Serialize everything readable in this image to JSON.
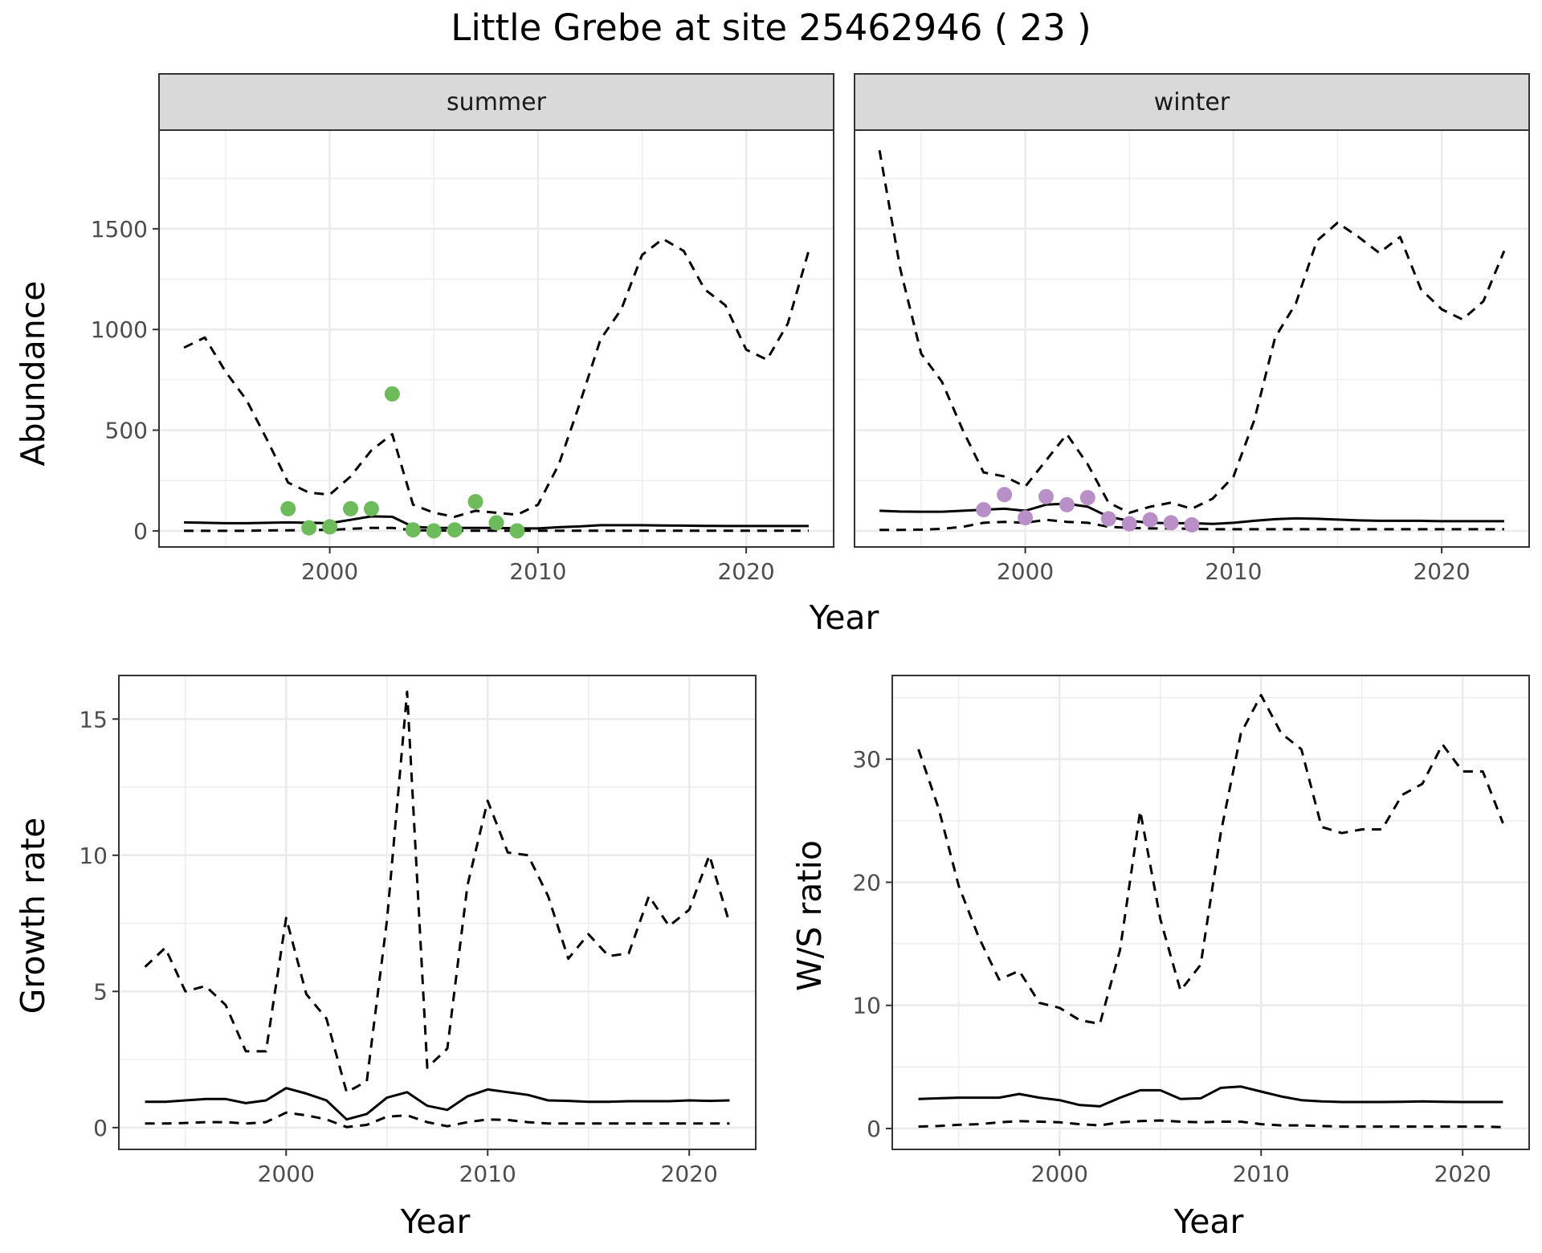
{
  "title": "Little Grebe at site 25462946 ( 23 )",
  "colors": {
    "summer": "#6dbb5a",
    "winter": "#b98fc8",
    "line": "#000000",
    "grid": "#ebebeb",
    "strip": "#d9d9d9"
  },
  "chart_data": [
    {
      "type": "line",
      "facet": "summer",
      "ylabel": "Abundance",
      "xlabel": "Year",
      "xlim": [
        1991.8,
        2024.2
      ],
      "ylim": [
        -80,
        1990
      ],
      "yticks": [
        0,
        500,
        1000,
        1500
      ],
      "xticks": [
        2000,
        2010,
        2020
      ],
      "grid": true,
      "series": [
        {
          "style": "solid",
          "x": [
            1993,
            1994,
            1995,
            1996,
            1997,
            1998,
            1999,
            2000,
            2001,
            2002,
            2003,
            2004,
            2005,
            2006,
            2007,
            2008,
            2009,
            2010,
            2011,
            2012,
            2013,
            2014,
            2015,
            2016,
            2017,
            2018,
            2019,
            2020,
            2021,
            2022,
            2023
          ],
          "y": [
            42,
            40,
            38,
            38,
            40,
            42,
            40,
            38,
            55,
            72,
            70,
            20,
            15,
            15,
            15,
            15,
            12,
            12,
            18,
            22,
            28,
            28,
            28,
            27,
            26,
            25,
            24,
            24,
            24,
            24,
            24
          ]
        },
        {
          "style": "dashed",
          "x": [
            1993,
            1994,
            1995,
            1996,
            1997,
            1998,
            1999,
            2000,
            2001,
            2002,
            2003,
            2004,
            2005,
            2006,
            2007,
            2008,
            2009,
            2010,
            2011,
            2012,
            2013,
            2014,
            2015,
            2016,
            2017,
            2018,
            2019,
            2020,
            2021,
            2022,
            2023
          ],
          "y": [
            910,
            960,
            790,
            650,
            450,
            240,
            190,
            180,
            270,
            400,
            480,
            130,
            90,
            70,
            100,
            90,
            80,
            130,
            330,
            630,
            950,
            1100,
            1370,
            1450,
            1390,
            1200,
            1120,
            900,
            850,
            1030,
            1390
          ]
        },
        {
          "style": "dashed",
          "x": [
            1993,
            1994,
            1995,
            1996,
            1997,
            1998,
            1999,
            2000,
            2001,
            2002,
            2003,
            2004,
            2005,
            2006,
            2007,
            2008,
            2009,
            2010,
            2011,
            2012,
            2013,
            2014,
            2015,
            2016,
            2017,
            2018,
            2019,
            2020,
            2021,
            2022,
            2023
          ],
          "y": [
            0,
            0,
            0,
            0,
            2,
            3,
            4,
            5,
            10,
            15,
            15,
            3,
            2,
            1,
            1,
            1,
            1,
            1,
            1,
            1,
            1,
            1,
            1,
            1,
            1,
            1,
            1,
            1,
            1,
            1,
            1
          ]
        }
      ],
      "points": {
        "x": [
          1998,
          1999,
          2000,
          2001,
          2002,
          2003,
          2004,
          2005,
          2006,
          2007,
          2008,
          2009
        ],
        "y": [
          110,
          15,
          20,
          110,
          110,
          680,
          5,
          0,
          5,
          145,
          40,
          0
        ]
      }
    },
    {
      "type": "line",
      "facet": "winter",
      "xlabel": "Year",
      "xlim": [
        1991.8,
        2024.2
      ],
      "ylim": [
        -80,
        1990
      ],
      "xticks": [
        2000,
        2010,
        2020
      ],
      "grid": true,
      "series": [
        {
          "style": "solid",
          "x": [
            1993,
            1994,
            1995,
            1996,
            1997,
            1998,
            1999,
            2000,
            2001,
            2002,
            2003,
            2004,
            2005,
            2006,
            2007,
            2008,
            2009,
            2010,
            2011,
            2012,
            2013,
            2014,
            2015,
            2016,
            2017,
            2018,
            2019,
            2020,
            2021,
            2022,
            2023
          ],
          "y": [
            100,
            96,
            95,
            95,
            100,
            105,
            110,
            100,
            130,
            135,
            120,
            70,
            50,
            40,
            38,
            38,
            35,
            40,
            50,
            58,
            62,
            60,
            56,
            52,
            50,
            50,
            50,
            48,
            48,
            48,
            48
          ]
        },
        {
          "style": "dashed",
          "x": [
            1993,
            1994,
            1995,
            1996,
            1997,
            1998,
            1999,
            2000,
            2001,
            2002,
            2003,
            2004,
            2005,
            2006,
            2007,
            2008,
            2009,
            2010,
            2011,
            2012,
            2013,
            2014,
            2015,
            2016,
            2017,
            2018,
            2019,
            2020,
            2021,
            2022,
            2023
          ],
          "y": [
            1890,
            1300,
            880,
            740,
            500,
            290,
            270,
            220,
            350,
            480,
            330,
            140,
            90,
            120,
            140,
            110,
            160,
            270,
            550,
            960,
            1130,
            1440,
            1530,
            1460,
            1380,
            1460,
            1200,
            1100,
            1050,
            1140,
            1390
          ]
        },
        {
          "style": "dashed",
          "x": [
            1993,
            1994,
            1995,
            1996,
            1997,
            1998,
            1999,
            2000,
            2001,
            2002,
            2003,
            2004,
            2005,
            2006,
            2007,
            2008,
            2009,
            2010,
            2011,
            2012,
            2013,
            2014,
            2015,
            2016,
            2017,
            2018,
            2019,
            2020,
            2021,
            2022,
            2023
          ],
          "y": [
            5,
            5,
            6,
            10,
            20,
            40,
            45,
            40,
            55,
            45,
            40,
            20,
            15,
            12,
            12,
            10,
            8,
            8,
            8,
            8,
            8,
            8,
            8,
            8,
            8,
            8,
            8,
            8,
            8,
            8,
            8
          ]
        }
      ],
      "points": {
        "x": [
          1998,
          1999,
          2000,
          2001,
          2002,
          2003,
          2004,
          2005,
          2006,
          2007,
          2008
        ],
        "y": [
          105,
          180,
          65,
          170,
          130,
          165,
          60,
          35,
          55,
          40,
          30
        ]
      }
    },
    {
      "type": "line",
      "ylabel": "Growth rate",
      "xlabel": "Year",
      "xlim": [
        1991.7,
        2023.3
      ],
      "ylim": [
        -0.8,
        16.6
      ],
      "yticks": [
        0,
        5,
        10,
        15
      ],
      "xticks": [
        2000,
        2010,
        2020
      ],
      "grid": true,
      "series": [
        {
          "style": "solid",
          "x": [
            1993,
            1994,
            1995,
            1996,
            1997,
            1998,
            1999,
            2000,
            2001,
            2002,
            2003,
            2004,
            2005,
            2006,
            2007,
            2008,
            2009,
            2010,
            2011,
            2012,
            2013,
            2014,
            2015,
            2016,
            2017,
            2018,
            2019,
            2020,
            2021,
            2022
          ],
          "y": [
            0.95,
            0.95,
            1.0,
            1.05,
            1.05,
            0.9,
            1.0,
            1.45,
            1.25,
            1.0,
            0.3,
            0.5,
            1.1,
            1.3,
            0.8,
            0.65,
            1.15,
            1.4,
            1.3,
            1.2,
            1.0,
            0.98,
            0.95,
            0.95,
            0.97,
            0.97,
            0.97,
            1.0,
            0.98,
            1.0
          ]
        },
        {
          "style": "dashed",
          "x": [
            1993,
            1994,
            1995,
            1996,
            1997,
            1998,
            1999,
            2000,
            2001,
            2002,
            2003,
            2004,
            2005,
            2006,
            2007,
            2008,
            2009,
            2010,
            2011,
            2012,
            2013,
            2014,
            2015,
            2016,
            2017,
            2018,
            2019,
            2020,
            2021,
            2022
          ],
          "y": [
            5.9,
            6.6,
            5.0,
            5.2,
            4.5,
            2.8,
            2.8,
            7.7,
            4.9,
            4.0,
            1.3,
            1.7,
            7.6,
            16.0,
            2.2,
            2.9,
            8.9,
            12.0,
            10.1,
            10.0,
            8.5,
            6.2,
            7.1,
            6.3,
            6.4,
            8.5,
            7.4,
            8.0,
            10.0,
            7.5
          ]
        },
        {
          "style": "dashed",
          "x": [
            1993,
            1994,
            1995,
            1996,
            1997,
            1998,
            1999,
            2000,
            2001,
            2002,
            2003,
            2004,
            2005,
            2006,
            2007,
            2008,
            2009,
            2010,
            2011,
            2012,
            2013,
            2014,
            2015,
            2016,
            2017,
            2018,
            2019,
            2020,
            2021,
            2022
          ],
          "y": [
            0.15,
            0.15,
            0.17,
            0.2,
            0.2,
            0.15,
            0.2,
            0.55,
            0.45,
            0.3,
            0.02,
            0.1,
            0.4,
            0.45,
            0.2,
            0.05,
            0.2,
            0.3,
            0.28,
            0.2,
            0.15,
            0.15,
            0.15,
            0.15,
            0.15,
            0.15,
            0.15,
            0.15,
            0.15,
            0.15
          ]
        }
      ]
    },
    {
      "type": "line",
      "ylabel": "W/S ratio",
      "xlabel": "Year",
      "xlim": [
        1991.7,
        2023.3
      ],
      "ylim": [
        -1.7,
        36.8
      ],
      "yticks": [
        0,
        10,
        20,
        30
      ],
      "xticks": [
        2000,
        2010,
        2020
      ],
      "grid": true,
      "series": [
        {
          "style": "solid",
          "x": [
            1993,
            1994,
            1995,
            1996,
            1997,
            1998,
            1999,
            2000,
            2001,
            2002,
            2003,
            2004,
            2005,
            2006,
            2007,
            2008,
            2009,
            2010,
            2011,
            2012,
            2013,
            2014,
            2015,
            2016,
            2017,
            2018,
            2019,
            2020,
            2021,
            2022
          ],
          "y": [
            2.4,
            2.45,
            2.5,
            2.5,
            2.5,
            2.8,
            2.5,
            2.3,
            1.9,
            1.8,
            2.5,
            3.1,
            3.1,
            2.4,
            2.45,
            3.3,
            3.4,
            3.0,
            2.6,
            2.3,
            2.2,
            2.15,
            2.15,
            2.15,
            2.17,
            2.2,
            2.17,
            2.15,
            2.15,
            2.15
          ]
        },
        {
          "style": "dashed",
          "x": [
            1993,
            1994,
            1995,
            1996,
            1997,
            1998,
            1999,
            2000,
            2001,
            2002,
            2003,
            2004,
            2005,
            2006,
            2007,
            2008,
            2009,
            2010,
            2011,
            2012,
            2013,
            2014,
            2015,
            2016,
            2017,
            2018,
            2019,
            2020,
            2021,
            2022
          ],
          "y": [
            30.8,
            26.0,
            19.7,
            15.5,
            12.1,
            12.8,
            10.2,
            9.8,
            8.8,
            8.5,
            14.5,
            25.8,
            17.0,
            11.2,
            13.3,
            24.0,
            32.1,
            35.2,
            32.1,
            30.8,
            24.5,
            24.0,
            24.3,
            24.3,
            27.1,
            28.0,
            31.2,
            29.0,
            29.0,
            24.8
          ]
        },
        {
          "style": "dashed",
          "x": [
            1993,
            1994,
            1995,
            1996,
            1997,
            1998,
            1999,
            2000,
            2001,
            2002,
            2003,
            2004,
            2005,
            2006,
            2007,
            2008,
            2009,
            2010,
            2011,
            2012,
            2013,
            2014,
            2015,
            2016,
            2017,
            2018,
            2019,
            2020,
            2021,
            2022
          ],
          "y": [
            0.15,
            0.2,
            0.3,
            0.35,
            0.5,
            0.6,
            0.55,
            0.5,
            0.35,
            0.25,
            0.5,
            0.6,
            0.65,
            0.55,
            0.5,
            0.55,
            0.55,
            0.35,
            0.25,
            0.25,
            0.2,
            0.15,
            0.15,
            0.15,
            0.15,
            0.15,
            0.15,
            0.15,
            0.15,
            0.1
          ]
        }
      ]
    }
  ],
  "panels": {
    "summer": {
      "strip_label": "summer"
    },
    "winter": {
      "strip_label": "winter"
    }
  },
  "shared_xlabel_top": "Year"
}
